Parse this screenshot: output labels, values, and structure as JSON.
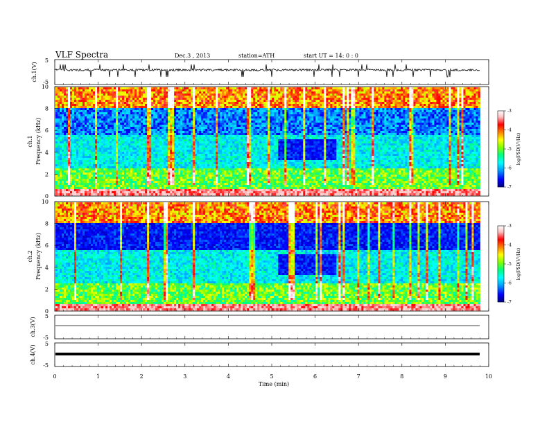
{
  "header": {
    "title": "VLF Spectra",
    "date": "Dec.3 , 2013",
    "station": "station=ATH",
    "start": "start UT = 14: 0 : 0"
  },
  "chart_data": {
    "type": "heatmap",
    "x": {
      "label": "Time (min)",
      "range": [
        0,
        10
      ],
      "ticks": [
        "0",
        "1",
        "2",
        "3",
        "4",
        "5",
        "6",
        "7",
        "8",
        "9",
        "10"
      ],
      "data_end_min": 9.8
    },
    "panels": [
      {
        "kind": "waveform",
        "ylabel": "ch.1(V)",
        "ylim": [
          -5,
          5
        ],
        "ticks": [
          "5",
          "-5"
        ]
      },
      {
        "kind": "spectrogram",
        "ylabel_channel": "ch.1",
        "ylabel": "Frequency (kHz)",
        "ylim": [
          0,
          10
        ],
        "ticks": [
          "0",
          "2",
          "4",
          "6",
          "8",
          "10"
        ],
        "colorbar": {
          "label": "log(PSD(V²/Hz)",
          "range": [
            -7,
            -3
          ],
          "ticks": [
            "-3",
            "-4",
            "-5",
            "-6",
            "-7"
          ],
          "colormap": [
            "#000080",
            "#0000ff",
            "#00a0ff",
            "#00ffff",
            "#00ff80",
            "#80ff00",
            "#ffff00",
            "#ff8000",
            "#ff0000",
            "#ffc0c0",
            "#ffffff"
          ]
        }
      },
      {
        "kind": "spectrogram",
        "ylabel_channel": "ch.2",
        "ylabel": "Frequency (kHz)",
        "ylim": [
          0,
          10
        ],
        "ticks": [
          "0",
          "2",
          "4",
          "6",
          "8",
          "10"
        ],
        "colorbar": {
          "label": "log(PSD(V²/Hz)",
          "range": [
            -7,
            -3
          ],
          "ticks": [
            "-3",
            "-4",
            "-5",
            "-6",
            "-7"
          ],
          "colormap": [
            "#000080",
            "#0000ff",
            "#00a0ff",
            "#00ffff",
            "#00ff80",
            "#80ff00",
            "#ffff00",
            "#ff8000",
            "#ff0000",
            "#ffc0c0",
            "#ffffff"
          ]
        }
      },
      {
        "kind": "waveform",
        "ylabel": "ch.3(V)",
        "ylim": [
          -5,
          5
        ],
        "ticks": [
          "5",
          "-5"
        ]
      },
      {
        "kind": "waveform",
        "ylabel": "ch.4(V)",
        "ylim": [
          -5,
          5
        ],
        "ticks": [
          "5",
          "-5"
        ]
      }
    ]
  }
}
